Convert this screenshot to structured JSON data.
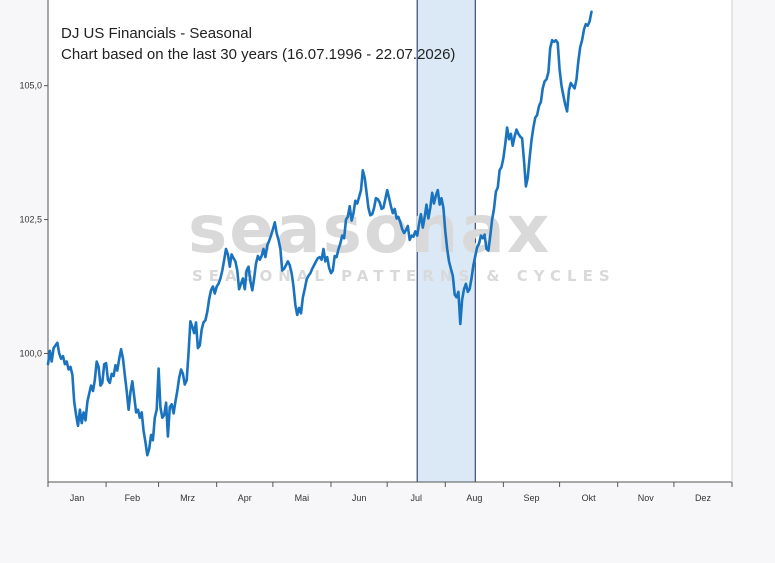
{
  "watermark": {
    "main": "seasonax",
    "sub": "SEASONAL PATTERNS & CYCLES"
  },
  "colors": {
    "line": "#1a73be",
    "highlight_fill": "#dbe9f7",
    "highlight_border": "#14285a",
    "axis": "#555555",
    "plot_bg": "#ffffff",
    "outer_bg": "#f7f7f9"
  },
  "chart_data": {
    "type": "line",
    "title": "DJ US Financials - Seasonal",
    "subtitle": "Chart based on the last 30 years (16.07.1996 - 22.07.2026)",
    "xlabel": "",
    "ylabel": "",
    "ylim": [
      97.6,
      106.6
    ],
    "yticks": [
      {
        "value": 100.0,
        "label": "100,0"
      },
      {
        "value": 102.5,
        "label": "102,5"
      },
      {
        "value": 105.0,
        "label": "105,0"
      }
    ],
    "xlim": [
      0,
      365
    ],
    "month_boundaries": [
      0,
      31,
      59,
      90,
      120,
      151,
      181,
      212,
      243,
      273,
      304,
      334,
      365
    ],
    "month_labels": [
      "Jan",
      "Feb",
      "Mrz",
      "Apr",
      "Mai",
      "Jun",
      "Jul",
      "Aug",
      "Sep",
      "Okt",
      "Nov",
      "Dez"
    ],
    "grid": false,
    "highlight_range": {
      "from": 16.07,
      "to": 22.07
    },
    "highlight_days": [
      197,
      228
    ],
    "series": [
      {
        "values": [
          [
            0,
            99.8
          ],
          [
            1,
            100.05
          ],
          [
            2,
            99.85
          ],
          [
            3,
            100.1
          ],
          [
            4,
            100.15
          ],
          [
            5,
            100.2
          ],
          [
            6,
            100.0
          ],
          [
            7,
            99.9
          ],
          [
            8,
            99.95
          ],
          [
            9,
            99.8
          ],
          [
            10,
            99.85
          ],
          [
            11,
            99.7
          ],
          [
            12,
            99.75
          ],
          [
            13,
            99.6
          ],
          [
            14,
            99.1
          ],
          [
            15,
            98.85
          ],
          [
            16,
            98.65
          ],
          [
            17,
            98.95
          ],
          [
            18,
            98.7
          ],
          [
            19,
            98.9
          ],
          [
            20,
            98.75
          ],
          [
            21,
            99.1
          ],
          [
            22,
            99.25
          ],
          [
            23,
            99.4
          ],
          [
            24,
            99.3
          ],
          [
            25,
            99.5
          ],
          [
            26,
            99.85
          ],
          [
            27,
            99.75
          ],
          [
            28,
            99.4
          ],
          [
            29,
            99.45
          ],
          [
            30,
            99.8
          ],
          [
            31,
            99.82
          ],
          [
            32,
            99.5
          ],
          [
            33,
            99.45
          ],
          [
            34,
            99.62
          ],
          [
            35,
            99.58
          ],
          [
            36,
            99.78
          ],
          [
            37,
            99.68
          ],
          [
            38,
            99.9
          ],
          [
            39,
            100.08
          ],
          [
            40,
            99.9
          ],
          [
            41,
            99.6
          ],
          [
            42,
            99.3
          ],
          [
            43,
            98.95
          ],
          [
            44,
            99.28
          ],
          [
            45,
            99.48
          ],
          [
            46,
            99.2
          ],
          [
            47,
            98.9
          ],
          [
            48,
            98.95
          ],
          [
            49,
            98.8
          ],
          [
            50,
            98.9
          ],
          [
            51,
            98.55
          ],
          [
            52,
            98.35
          ],
          [
            53,
            98.1
          ],
          [
            54,
            98.22
          ],
          [
            55,
            98.48
          ],
          [
            56,
            98.38
          ],
          [
            57,
            98.8
          ],
          [
            58,
            98.95
          ],
          [
            59,
            99.72
          ],
          [
            60,
            99.0
          ],
          [
            61,
            98.8
          ],
          [
            62,
            98.85
          ],
          [
            63,
            99.08
          ],
          [
            64,
            98.45
          ],
          [
            65,
            99.0
          ],
          [
            66,
            99.05
          ],
          [
            67,
            98.88
          ],
          [
            68,
            99.1
          ],
          [
            69,
            99.3
          ],
          [
            70,
            99.55
          ],
          [
            71,
            99.7
          ],
          [
            72,
            99.62
          ],
          [
            73,
            99.42
          ],
          [
            74,
            99.5
          ],
          [
            75,
            100.0
          ],
          [
            76,
            100.6
          ],
          [
            77,
            100.5
          ],
          [
            78,
            100.38
          ],
          [
            79,
            100.58
          ],
          [
            80,
            100.1
          ],
          [
            81,
            100.15
          ],
          [
            82,
            100.45
          ],
          [
            83,
            100.58
          ],
          [
            84,
            100.62
          ],
          [
            85,
            100.78
          ],
          [
            86,
            101.02
          ],
          [
            87,
            101.18
          ],
          [
            88,
            101.25
          ],
          [
            89,
            101.12
          ],
          [
            90,
            101.25
          ],
          [
            91,
            101.3
          ],
          [
            92,
            101.4
          ],
          [
            93,
            101.55
          ],
          [
            94,
            101.75
          ],
          [
            95,
            101.95
          ],
          [
            96,
            101.85
          ],
          [
            97,
            101.62
          ],
          [
            98,
            101.85
          ],
          [
            99,
            101.78
          ],
          [
            100,
            101.72
          ],
          [
            101,
            101.55
          ],
          [
            102,
            101.2
          ],
          [
            103,
            101.3
          ],
          [
            104,
            101.4
          ],
          [
            105,
            101.2
          ],
          [
            106,
            101.55
          ],
          [
            107,
            101.62
          ],
          [
            108,
            101.35
          ],
          [
            109,
            101.18
          ],
          [
            110,
            101.4
          ],
          [
            111,
            101.68
          ],
          [
            112,
            101.82
          ],
          [
            113,
            101.75
          ],
          [
            114,
            101.82
          ],
          [
            115,
            101.95
          ],
          [
            116,
            101.8
          ],
          [
            117,
            102.02
          ],
          [
            118,
            102.1
          ],
          [
            119,
            102.2
          ],
          [
            120,
            102.32
          ],
          [
            121,
            102.45
          ],
          [
            122,
            102.25
          ],
          [
            123,
            102.12
          ],
          [
            124,
            101.95
          ],
          [
            125,
            101.55
          ],
          [
            126,
            101.58
          ],
          [
            127,
            101.65
          ],
          [
            128,
            101.72
          ],
          [
            129,
            101.65
          ],
          [
            130,
            101.5
          ],
          [
            131,
            101.25
          ],
          [
            132,
            100.9
          ],
          [
            133,
            100.72
          ],
          [
            134,
            100.85
          ],
          [
            135,
            100.75
          ],
          [
            136,
            101.05
          ],
          [
            137,
            101.2
          ],
          [
            138,
            101.38
          ],
          [
            139,
            101.45
          ],
          [
            140,
            101.5
          ],
          [
            141,
            101.58
          ],
          [
            142,
            101.65
          ],
          [
            143,
            101.72
          ],
          [
            144,
            101.78
          ],
          [
            145,
            101.8
          ],
          [
            146,
            101.75
          ],
          [
            147,
            101.95
          ],
          [
            148,
            101.72
          ],
          [
            149,
            101.8
          ],
          [
            150,
            101.6
          ],
          [
            151,
            101.5
          ],
          [
            152,
            101.55
          ],
          [
            153,
            101.82
          ],
          [
            154,
            101.8
          ],
          [
            155,
            101.95
          ],
          [
            156,
            102.05
          ],
          [
            157,
            102.2
          ],
          [
            158,
            102.15
          ],
          [
            159,
            102.5
          ],
          [
            160,
            102.55
          ],
          [
            161,
            102.75
          ],
          [
            162,
            102.48
          ],
          [
            163,
            102.62
          ],
          [
            164,
            102.85
          ],
          [
            165,
            102.8
          ],
          [
            166,
            102.92
          ],
          [
            167,
            103.05
          ],
          [
            168,
            103.42
          ],
          [
            169,
            103.28
          ],
          [
            170,
            103.0
          ],
          [
            171,
            102.72
          ],
          [
            172,
            102.58
          ],
          [
            173,
            102.6
          ],
          [
            174,
            102.72
          ],
          [
            175,
            102.9
          ],
          [
            176,
            102.88
          ],
          [
            177,
            102.82
          ],
          [
            178,
            102.7
          ],
          [
            179,
            102.72
          ],
          [
            180,
            102.88
          ],
          [
            181,
            103.05
          ],
          [
            182,
            102.9
          ],
          [
            183,
            102.75
          ],
          [
            184,
            102.62
          ],
          [
            185,
            102.7
          ],
          [
            186,
            102.52
          ],
          [
            187,
            102.55
          ],
          [
            188,
            102.45
          ],
          [
            189,
            102.32
          ],
          [
            190,
            102.25
          ],
          [
            191,
            102.3
          ],
          [
            192,
            102.38
          ],
          [
            193,
            102.12
          ],
          [
            194,
            102.2
          ],
          [
            195,
            102.18
          ],
          [
            196,
            102.28
          ],
          [
            197,
            102.2
          ],
          [
            198,
            102.42
          ],
          [
            199,
            102.6
          ],
          [
            200,
            102.35
          ],
          [
            201,
            102.55
          ],
          [
            202,
            102.78
          ],
          [
            203,
            102.52
          ],
          [
            204,
            102.72
          ],
          [
            205,
            103.0
          ],
          [
            206,
            102.8
          ],
          [
            207,
            102.95
          ],
          [
            208,
            103.05
          ],
          [
            209,
            102.78
          ],
          [
            210,
            102.9
          ],
          [
            211,
            102.72
          ],
          [
            212,
            102.28
          ],
          [
            213,
            101.95
          ],
          [
            214,
            101.72
          ],
          [
            215,
            101.58
          ],
          [
            216,
            101.45
          ],
          [
            217,
            101.1
          ],
          [
            218,
            101.05
          ],
          [
            219,
            101.15
          ],
          [
            220,
            100.55
          ],
          [
            221,
            101.0
          ],
          [
            222,
            101.2
          ],
          [
            223,
            101.3
          ],
          [
            224,
            101.15
          ],
          [
            225,
            101.2
          ],
          [
            226,
            101.4
          ],
          [
            227,
            101.65
          ],
          [
            228,
            101.82
          ],
          [
            229,
            101.98
          ],
          [
            230,
            102.05
          ],
          [
            231,
            102.2
          ],
          [
            232,
            102.15
          ],
          [
            233,
            102.22
          ],
          [
            234,
            101.95
          ],
          [
            235,
            101.92
          ],
          [
            236,
            102.2
          ],
          [
            237,
            102.5
          ],
          [
            238,
            102.7
          ],
          [
            239,
            103.02
          ],
          [
            240,
            103.1
          ],
          [
            241,
            103.42
          ],
          [
            242,
            103.48
          ],
          [
            243,
            103.65
          ],
          [
            244,
            103.9
          ],
          [
            245,
            104.22
          ],
          [
            246,
            104.0
          ],
          [
            247,
            104.1
          ],
          [
            248,
            103.88
          ],
          [
            249,
            104.05
          ],
          [
            250,
            104.18
          ],
          [
            251,
            104.1
          ],
          [
            252,
            104.05
          ],
          [
            253,
            104.02
          ],
          [
            254,
            103.6
          ],
          [
            255,
            103.12
          ],
          [
            256,
            103.28
          ],
          [
            257,
            103.65
          ],
          [
            258,
            103.98
          ],
          [
            259,
            104.22
          ],
          [
            260,
            104.4
          ],
          [
            261,
            104.45
          ],
          [
            262,
            104.62
          ],
          [
            263,
            104.7
          ],
          [
            264,
            104.95
          ],
          [
            265,
            105.08
          ],
          [
            266,
            105.12
          ],
          [
            267,
            105.25
          ],
          [
            268,
            105.7
          ],
          [
            269,
            105.85
          ],
          [
            270,
            105.82
          ],
          [
            271,
            105.85
          ],
          [
            272,
            105.8
          ],
          [
            273,
            105.3
          ],
          [
            274,
            105.0
          ],
          [
            275,
            104.82
          ],
          [
            276,
            104.65
          ],
          [
            277,
            104.52
          ],
          [
            278,
            104.92
          ],
          [
            279,
            105.05
          ],
          [
            280,
            105.0
          ],
          [
            281,
            104.95
          ],
          [
            282,
            105.12
          ],
          [
            283,
            105.45
          ],
          [
            284,
            105.72
          ],
          [
            285,
            105.85
          ],
          [
            286,
            106.05
          ],
          [
            287,
            106.15
          ],
          [
            288,
            106.12
          ],
          [
            289,
            106.2
          ],
          [
            290,
            106.38
          ]
        ]
      }
    ]
  }
}
